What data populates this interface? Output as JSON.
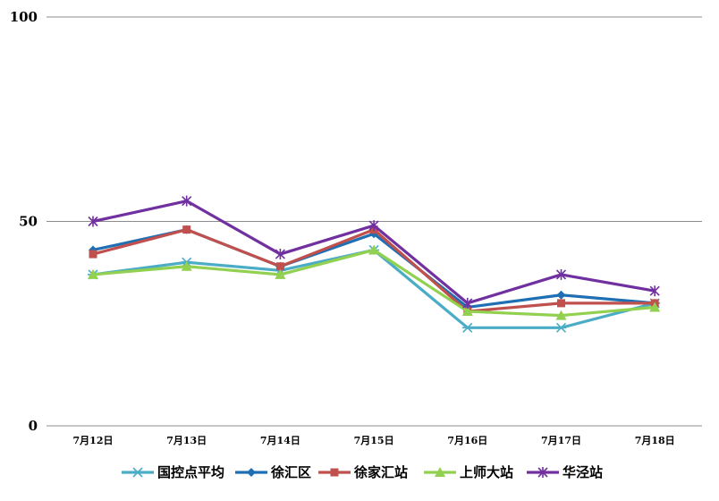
{
  "chart_data": {
    "type": "line",
    "title": "",
    "xlabel": "",
    "ylabel": "",
    "ylim": [
      0,
      100
    ],
    "yticks": [
      "0",
      "50",
      "100"
    ],
    "grid": "horizontal",
    "legend_position": "bottom",
    "categories": [
      "7月12日",
      "7月13日",
      "7月14日",
      "7月15日",
      "7月16日",
      "7月17日",
      "7月18日"
    ],
    "series": [
      {
        "name": "国控点平均",
        "color": "#4BACC6",
        "marker": "asterisk",
        "values": [
          37,
          40,
          38,
          43,
          24,
          24,
          30
        ]
      },
      {
        "name": "徐汇区",
        "color": "#1F6FB4",
        "marker": "diamond",
        "values": [
          43,
          48,
          39,
          47,
          29,
          32,
          30
        ]
      },
      {
        "name": "徐家汇站",
        "color": "#C0504D",
        "marker": "square",
        "values": [
          42,
          48,
          39,
          48,
          28,
          30,
          30
        ]
      },
      {
        "name": "上师大站",
        "color": "#92D050",
        "marker": "triangle",
        "values": [
          37,
          39,
          37,
          43,
          28,
          27,
          29
        ]
      },
      {
        "name": "华泾站",
        "color": "#7030A0",
        "marker": "x-star",
        "values": [
          50,
          55,
          42,
          49,
          30,
          37,
          33
        ]
      }
    ]
  }
}
